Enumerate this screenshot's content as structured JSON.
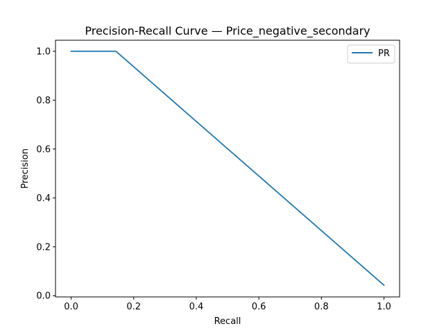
{
  "chart_data": {
    "type": "line",
    "title": "Precision-Recall Curve — Price_negative_secondary",
    "xlabel": "Recall",
    "ylabel": "Precision",
    "xlim": [
      -0.05,
      1.05
    ],
    "ylim": [
      -0.005,
      1.045
    ],
    "xticks": [
      0.0,
      0.2,
      0.4,
      0.6,
      0.8,
      1.0
    ],
    "yticks": [
      0.0,
      0.2,
      0.4,
      0.6,
      0.8,
      1.0
    ],
    "xtick_labels": [
      "0.0",
      "0.2",
      "0.4",
      "0.6",
      "0.8",
      "1.0"
    ],
    "ytick_labels": [
      "0.0",
      "0.2",
      "0.4",
      "0.6",
      "0.8",
      "1.0"
    ],
    "grid": false,
    "legend_position": "top-right",
    "series": [
      {
        "name": "PR",
        "color": "#1f77b4",
        "x": [
          0.0,
          0.143,
          1.0
        ],
        "y": [
          1.0,
          1.0,
          0.043
        ]
      }
    ]
  }
}
